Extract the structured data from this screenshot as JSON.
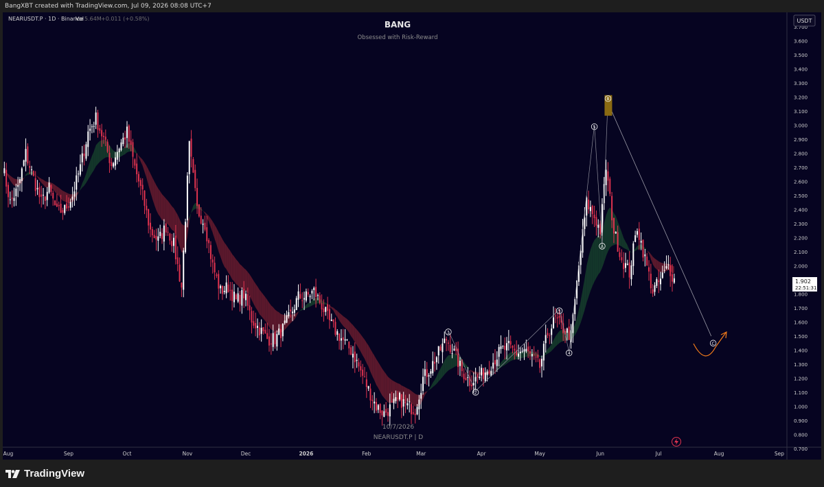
{
  "header": {
    "attribution": "BangXBT created with TradingView.com, Jul 09, 2026 08:08 UTC+7"
  },
  "symbol_line": {
    "symbol": "NEARUSDT.P · 1D · Binance",
    "vol_label": "Vol",
    "vol_value": "5.64M",
    "change": "+0.011 (+0.58%)"
  },
  "chart_title": "BANG",
  "chart_subtitle": "Obsessed with Risk-Reward",
  "watermark_date": "10/7/2026",
  "watermark_symbol": "NEARUSDT.P | D",
  "price_axis": {
    "currency_button": "USDT",
    "current_price": "1.902",
    "countdown": "22:51:31"
  },
  "footer": {
    "brand": "TradingView"
  },
  "colors": {
    "background": "#060421",
    "up_candle": "#ffffff",
    "down_candle": "#e0334f",
    "ribbon_bear": "#6a1c2e",
    "ribbon_bull": "#16402c",
    "wave_label": "#ffffff",
    "projection_arrow": "#f07a1a",
    "label_b_box": "#8a6a12"
  },
  "chart_data": {
    "type": "candlestick",
    "title": "BANG",
    "subtitle": "Obsessed with Risk-Reward",
    "y_axis": {
      "unit": "USDT",
      "ylim": [
        0.7,
        3.75
      ],
      "ticks": [
        "3.700",
        "3.600",
        "3.500",
        "3.400",
        "3.300",
        "3.200",
        "3.100",
        "3.000",
        "2.900",
        "2.800",
        "2.700",
        "2.600",
        "2.500",
        "2.400",
        "2.300",
        "2.200",
        "2.100",
        "2.000",
        "1.900",
        "1.800",
        "1.700",
        "1.600",
        "1.500",
        "1.400",
        "1.300",
        "1.200",
        "1.100",
        "1.000",
        "0.900",
        "0.800",
        "0.700"
      ]
    },
    "x_axis": {
      "ticks": [
        {
          "label": "Aug",
          "date": "2025-08-01"
        },
        {
          "label": "Sep",
          "date": "2025-09-01"
        },
        {
          "label": "Oct",
          "date": "2025-10-01"
        },
        {
          "label": "Nov",
          "date": "2025-11-01"
        },
        {
          "label": "Dec",
          "date": "2025-12-01"
        },
        {
          "label": "2026",
          "date": "2026-01-01"
        },
        {
          "label": "Feb",
          "date": "2026-02-01"
        },
        {
          "label": "Mar",
          "date": "2026-03-01"
        },
        {
          "label": "Apr",
          "date": "2026-04-01"
        },
        {
          "label": "May",
          "date": "2026-05-01"
        },
        {
          "label": "Jun",
          "date": "2026-06-01"
        },
        {
          "label": "Jul",
          "date": "2026-07-01"
        },
        {
          "label": "Aug",
          "date": "2026-08-01"
        },
        {
          "label": "Sep",
          "date": "2026-09-01"
        }
      ]
    },
    "close_path": [
      [
        "2025-07-29",
        2.72
      ],
      [
        "2025-08-02",
        2.45
      ],
      [
        "2025-08-06",
        2.55
      ],
      [
        "2025-08-10",
        2.8
      ],
      [
        "2025-08-14",
        2.62
      ],
      [
        "2025-08-18",
        2.45
      ],
      [
        "2025-08-22",
        2.55
      ],
      [
        "2025-08-26",
        2.38
      ],
      [
        "2025-08-30",
        2.4
      ],
      [
        "2025-09-03",
        2.5
      ],
      [
        "2025-09-07",
        2.7
      ],
      [
        "2025-09-11",
        2.95
      ],
      [
        "2025-09-15",
        3.05
      ],
      [
        "2025-09-19",
        2.9
      ],
      [
        "2025-09-23",
        2.72
      ],
      [
        "2025-09-27",
        2.85
      ],
      [
        "2025-10-01",
        2.95
      ],
      [
        "2025-10-05",
        2.7
      ],
      [
        "2025-10-09",
        2.5
      ],
      [
        "2025-10-13",
        2.25
      ],
      [
        "2025-10-17",
        2.18
      ],
      [
        "2025-10-21",
        2.28
      ],
      [
        "2025-10-25",
        2.15
      ],
      [
        "2025-10-29",
        1.85
      ],
      [
        "2025-11-02",
        2.85
      ],
      [
        "2025-11-06",
        2.4
      ],
      [
        "2025-11-10",
        2.3
      ],
      [
        "2025-11-14",
        2.0
      ],
      [
        "2025-11-18",
        1.82
      ],
      [
        "2025-11-22",
        1.85
      ],
      [
        "2025-11-26",
        1.75
      ],
      [
        "2025-11-30",
        1.8
      ],
      [
        "2025-12-04",
        1.62
      ],
      [
        "2025-12-08",
        1.55
      ],
      [
        "2025-12-12",
        1.48
      ],
      [
        "2025-12-16",
        1.48
      ],
      [
        "2025-12-20",
        1.55
      ],
      [
        "2025-12-24",
        1.65
      ],
      [
        "2025-12-28",
        1.78
      ],
      [
        "2026-01-01",
        1.78
      ],
      [
        "2026-01-05",
        1.82
      ],
      [
        "2026-01-09",
        1.72
      ],
      [
        "2026-01-13",
        1.6
      ],
      [
        "2026-01-17",
        1.52
      ],
      [
        "2026-01-21",
        1.45
      ],
      [
        "2026-01-25",
        1.38
      ],
      [
        "2026-01-29",
        1.25
      ],
      [
        "2026-02-02",
        1.12
      ],
      [
        "2026-02-06",
        1.0
      ],
      [
        "2026-02-10",
        0.95
      ],
      [
        "2026-02-14",
        1.0
      ],
      [
        "2026-02-18",
        1.05
      ],
      [
        "2026-02-22",
        1.0
      ],
      [
        "2026-02-26",
        0.98
      ],
      [
        "2026-03-02",
        1.2
      ],
      [
        "2026-03-06",
        1.28
      ],
      [
        "2026-03-10",
        1.38
      ],
      [
        "2026-03-14",
        1.48
      ],
      [
        "2026-03-18",
        1.38
      ],
      [
        "2026-03-22",
        1.25
      ],
      [
        "2026-03-26",
        1.18
      ],
      [
        "2026-03-30",
        1.2
      ],
      [
        "2026-04-03",
        1.25
      ],
      [
        "2026-04-07",
        1.32
      ],
      [
        "2026-04-11",
        1.4
      ],
      [
        "2026-04-15",
        1.42
      ],
      [
        "2026-04-19",
        1.38
      ],
      [
        "2026-04-23",
        1.4
      ],
      [
        "2026-04-27",
        1.35
      ],
      [
        "2026-05-01",
        1.28
      ],
      [
        "2026-05-05",
        1.52
      ],
      [
        "2026-05-09",
        1.62
      ],
      [
        "2026-05-13",
        1.55
      ],
      [
        "2026-05-17",
        1.5
      ],
      [
        "2026-05-21",
        2.0
      ],
      [
        "2026-05-25",
        2.45
      ],
      [
        "2026-05-29",
        2.35
      ],
      [
        "2026-06-01",
        2.25
      ],
      [
        "2026-06-04",
        2.7
      ],
      [
        "2026-06-08",
        2.25
      ],
      [
        "2026-06-12",
        2.05
      ],
      [
        "2026-06-16",
        1.95
      ],
      [
        "2026-06-20",
        2.28
      ],
      [
        "2026-06-24",
        2.05
      ],
      [
        "2026-06-28",
        1.82
      ],
      [
        "2026-07-02",
        1.9
      ],
      [
        "2026-07-06",
        2.0
      ],
      [
        "2026-07-09",
        1.9
      ]
    ],
    "wave_labels": [
      {
        "label": "1",
        "date": "2026-03-15",
        "value": 1.54
      },
      {
        "label": "2",
        "date": "2026-03-29",
        "value": 1.11
      },
      {
        "label": "3",
        "date": "2026-05-11",
        "value": 1.69
      },
      {
        "label": "4",
        "date": "2026-05-16",
        "value": 1.39
      },
      {
        "label": "5",
        "date": "2026-05-29",
        "value": 3.0
      },
      {
        "label": "A",
        "date": "2026-06-02",
        "value": 2.15
      },
      {
        "label": "B",
        "date": "2026-06-05",
        "value": 3.2
      },
      {
        "label": "C",
        "date": "2026-07-29",
        "value": 1.46
      }
    ],
    "last_price": 1.902,
    "projection": {
      "from_date": "2026-06-05",
      "from": 3.16,
      "to_date": "2026-07-28",
      "to": 1.5
    }
  }
}
